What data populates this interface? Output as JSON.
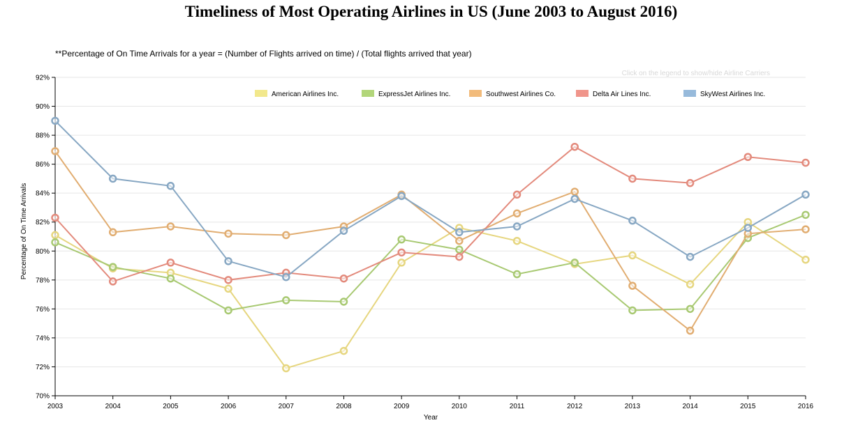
{
  "title": "Timeliness of Most Operating Airlines in US (June 2003 to August 2016)",
  "subtitle": "**Percentage of On Time Arrivals for a year = (Number of Flights arrived on time) / (Total flights arrived that year)",
  "legend_hint": "Click on the legend to show/hide Airline Carriers",
  "chart_data": {
    "type": "line",
    "title": "Timeliness of Most Operating Airlines in US (June 2003 to August 2016)",
    "xlabel": "Year",
    "ylabel": "Percentage of On Time Arrivals",
    "x": [
      2003,
      2004,
      2005,
      2006,
      2007,
      2008,
      2009,
      2010,
      2011,
      2012,
      2013,
      2014,
      2015,
      2016
    ],
    "xlim": [
      2003,
      2016
    ],
    "ylim": [
      70,
      92
    ],
    "yticks": [
      70,
      72,
      74,
      76,
      78,
      80,
      82,
      84,
      86,
      88,
      90,
      92
    ],
    "ytick_suffix": "%",
    "grid": true,
    "legend_position": "top",
    "series": [
      {
        "name": "American Airlines Inc.",
        "color": "#e6d67f",
        "legend_color": "#f2e88c",
        "values": [
          81.1,
          78.8,
          78.5,
          77.4,
          71.9,
          73.1,
          79.2,
          81.6,
          80.7,
          79.1,
          79.7,
          77.7,
          82.0,
          79.4
        ]
      },
      {
        "name": "ExpressJet Airlines Inc.",
        "color": "#a8c972",
        "legend_color": "#b2d67a",
        "values": [
          80.6,
          78.9,
          78.1,
          75.9,
          76.6,
          76.5,
          80.8,
          80.1,
          78.4,
          79.2,
          75.9,
          76.0,
          80.9,
          82.5
        ]
      },
      {
        "name": "Southwest Airlines Co.",
        "color": "#e1ad71",
        "legend_color": "#f2bb7b",
        "values": [
          86.9,
          81.3,
          81.7,
          81.2,
          81.1,
          81.7,
          83.9,
          80.7,
          82.6,
          84.1,
          77.6,
          74.5,
          81.2,
          81.5
        ]
      },
      {
        "name": "Delta Air Lines Inc.",
        "color": "#e38a7c",
        "legend_color": "#f0958b",
        "values": [
          82.3,
          77.9,
          79.2,
          78.0,
          78.5,
          78.1,
          79.9,
          79.6,
          83.9,
          87.2,
          85.0,
          84.7,
          86.5,
          86.1
        ]
      },
      {
        "name": "SkyWest Airlines Inc.",
        "color": "#87a7c3",
        "legend_color": "#97badb",
        "values": [
          89.0,
          85.0,
          84.5,
          79.3,
          78.2,
          81.4,
          83.8,
          81.3,
          81.7,
          83.6,
          82.1,
          79.6,
          81.6,
          83.9
        ]
      }
    ]
  }
}
